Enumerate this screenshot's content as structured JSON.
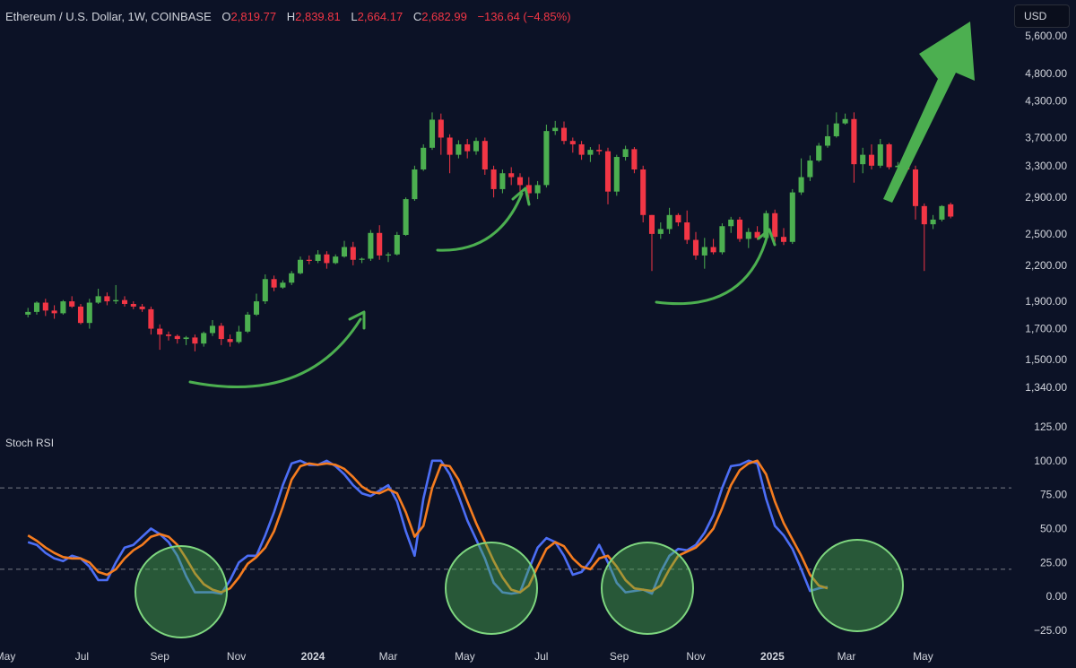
{
  "header": {
    "symbol": "Ethereum / U.S. Dollar, 1W, COINBASE",
    "open_label": "O",
    "open": "2,819.77",
    "high_label": "H",
    "high": "2,839.81",
    "low_label": "L",
    "low": "2,664.17",
    "close_label": "C",
    "close": "2,682.99",
    "change": "−136.64 (−4.85%)"
  },
  "currency_button": "USD",
  "indicator_label": "Stoch RSI",
  "colors": {
    "up": "#4caf50",
    "down": "#f23645",
    "background": "#0c1226",
    "k_line": "#4c6ef5",
    "d_line": "#f57c1f",
    "annotation": "#4caf50"
  },
  "chart_data": [
    {
      "type": "candlestick",
      "title": "Ethereum / U.S. Dollar, 1W, COINBASE",
      "yscale": "log",
      "ylim": [
        1200,
        6200
      ],
      "price_ticks": [
        5600,
        4800,
        4300,
        3700,
        3300,
        2900,
        2500,
        2200,
        1900,
        1700,
        1500,
        1340
      ],
      "price_tick_labels": [
        "5,600.00",
        "4,800.00",
        "4,300.00",
        "3,700.00",
        "3,300.00",
        "2,900.00",
        "2,500.00",
        "2,200.00",
        "1,900.00",
        "1,700.00",
        "1,500.00",
        "1,340.00"
      ],
      "x_start": "2023-05-19",
      "interval_days": 7,
      "x_ticks": [
        {
          "date": "2023-05-01",
          "label": "May",
          "bold": false
        },
        {
          "date": "2023-07-01",
          "label": "Jul",
          "bold": false
        },
        {
          "date": "2023-09-01",
          "label": "Sep",
          "bold": false
        },
        {
          "date": "2023-11-01",
          "label": "Nov",
          "bold": false
        },
        {
          "date": "2024-01-01",
          "label": "2024",
          "bold": true
        },
        {
          "date": "2024-03-01",
          "label": "Mar",
          "bold": false
        },
        {
          "date": "2024-05-01",
          "label": "May",
          "bold": false
        },
        {
          "date": "2024-07-01",
          "label": "Jul",
          "bold": false
        },
        {
          "date": "2024-09-01",
          "label": "Sep",
          "bold": false
        },
        {
          "date": "2024-11-01",
          "label": "Nov",
          "bold": false
        },
        {
          "date": "2025-01-01",
          "label": "2025",
          "bold": true
        },
        {
          "date": "2025-03-01",
          "label": "Mar",
          "bold": false
        },
        {
          "date": "2025-05-01",
          "label": "May",
          "bold": false
        }
      ],
      "ohlc": [
        [
          1800,
          1850,
          1780,
          1820
        ],
        [
          1820,
          1900,
          1800,
          1890
        ],
        [
          1890,
          1920,
          1790,
          1830
        ],
        [
          1830,
          1870,
          1770,
          1810
        ],
        [
          1810,
          1910,
          1800,
          1900
        ],
        [
          1900,
          1940,
          1850,
          1860
        ],
        [
          1860,
          1880,
          1730,
          1740
        ],
        [
          1740,
          1920,
          1700,
          1890
        ],
        [
          1890,
          2000,
          1880,
          1940
        ],
        [
          1940,
          1970,
          1870,
          1900
        ],
        [
          1900,
          2030,
          1880,
          1910
        ],
        [
          1910,
          1940,
          1860,
          1880
        ],
        [
          1880,
          1900,
          1840,
          1860
        ],
        [
          1860,
          1880,
          1820,
          1840
        ],
        [
          1840,
          1860,
          1660,
          1700
        ],
        [
          1700,
          1730,
          1560,
          1660
        ],
        [
          1660,
          1680,
          1620,
          1650
        ],
        [
          1650,
          1660,
          1600,
          1630
        ],
        [
          1630,
          1650,
          1590,
          1640
        ],
        [
          1640,
          1660,
          1550,
          1600
        ],
        [
          1600,
          1680,
          1580,
          1670
        ],
        [
          1670,
          1760,
          1650,
          1720
        ],
        [
          1720,
          1740,
          1590,
          1630
        ],
        [
          1630,
          1660,
          1580,
          1610
        ],
        [
          1610,
          1720,
          1600,
          1680
        ],
        [
          1680,
          1820,
          1670,
          1800
        ],
        [
          1800,
          1960,
          1790,
          1900
        ],
        [
          1900,
          2120,
          1880,
          2080
        ],
        [
          2080,
          2110,
          1980,
          2010
        ],
        [
          2010,
          2070,
          2000,
          2050
        ],
        [
          2050,
          2150,
          2030,
          2130
        ],
        [
          2130,
          2280,
          2120,
          2250
        ],
        [
          2250,
          2290,
          2210,
          2240
        ],
        [
          2240,
          2340,
          2220,
          2300
        ],
        [
          2300,
          2330,
          2170,
          2220
        ],
        [
          2220,
          2300,
          2210,
          2280
        ],
        [
          2280,
          2430,
          2270,
          2370
        ],
        [
          2370,
          2420,
          2200,
          2250
        ],
        [
          2250,
          2270,
          2220,
          2260
        ],
        [
          2260,
          2540,
          2240,
          2510
        ],
        [
          2510,
          2590,
          2250,
          2290
        ],
        [
          2290,
          2320,
          2230,
          2300
        ],
        [
          2300,
          2520,
          2290,
          2490
        ],
        [
          2490,
          2900,
          2480,
          2880
        ],
        [
          2880,
          3300,
          2860,
          3250
        ],
        [
          3250,
          3600,
          3230,
          3550
        ],
        [
          3550,
          4100,
          3520,
          3980
        ],
        [
          3980,
          4080,
          3450,
          3700
        ],
        [
          3700,
          3750,
          3200,
          3450
        ],
        [
          3450,
          3660,
          3400,
          3600
        ],
        [
          3600,
          3680,
          3400,
          3500
        ],
        [
          3500,
          3700,
          3450,
          3650
        ],
        [
          3650,
          3700,
          3180,
          3250
        ],
        [
          3250,
          3300,
          2900,
          3000
        ],
        [
          3000,
          3250,
          2950,
          3200
        ],
        [
          3200,
          3280,
          3050,
          3150
        ],
        [
          3150,
          3200,
          2930,
          3050
        ],
        [
          3050,
          3150,
          2880,
          2950
        ],
        [
          2950,
          3100,
          2880,
          3050
        ],
        [
          3050,
          3900,
          3020,
          3800
        ],
        [
          3800,
          3960,
          3740,
          3850
        ],
        [
          3850,
          3950,
          3600,
          3650
        ],
        [
          3650,
          3700,
          3480,
          3600
        ],
        [
          3600,
          3650,
          3380,
          3450
        ],
        [
          3450,
          3560,
          3350,
          3520
        ],
        [
          3520,
          3600,
          3450,
          3500
        ],
        [
          3500,
          3550,
          2820,
          2970
        ],
        [
          2970,
          3450,
          2920,
          3420
        ],
        [
          3420,
          3580,
          3370,
          3530
        ],
        [
          3530,
          3560,
          3200,
          3250
        ],
        [
          3250,
          3300,
          2620,
          2700
        ],
        [
          2700,
          2700,
          2150,
          2500
        ],
        [
          2500,
          2620,
          2450,
          2550
        ],
        [
          2550,
          2780,
          2500,
          2700
        ],
        [
          2700,
          2720,
          2580,
          2620
        ],
        [
          2620,
          2750,
          2400,
          2440
        ],
        [
          2440,
          2520,
          2250,
          2290
        ],
        [
          2290,
          2460,
          2170,
          2370
        ],
        [
          2370,
          2450,
          2300,
          2320
        ],
        [
          2320,
          2610,
          2300,
          2580
        ],
        [
          2580,
          2680,
          2510,
          2650
        ],
        [
          2650,
          2680,
          2420,
          2450
        ],
        [
          2450,
          2560,
          2360,
          2520
        ],
        [
          2520,
          2580,
          2440,
          2460
        ],
        [
          2460,
          2750,
          2440,
          2720
        ],
        [
          2720,
          2760,
          2420,
          2470
        ],
        [
          2470,
          2560,
          2390,
          2420
        ],
        [
          2420,
          3000,
          2400,
          2960
        ],
        [
          2960,
          3400,
          2930,
          3150
        ],
        [
          3150,
          3440,
          3100,
          3370
        ],
        [
          3370,
          3620,
          3350,
          3580
        ],
        [
          3580,
          3900,
          3550,
          3720
        ],
        [
          3720,
          4100,
          3700,
          3920
        ],
        [
          3920,
          4080,
          3900,
          3990
        ],
        [
          3990,
          4100,
          3080,
          3320
        ],
        [
          3320,
          3550,
          3200,
          3450
        ],
        [
          3450,
          3600,
          3250,
          3300
        ],
        [
          3300,
          3680,
          3270,
          3600
        ],
        [
          3600,
          3620,
          3250,
          3280
        ],
        [
          3280,
          3350,
          3120,
          3300
        ],
        [
          3300,
          3420,
          3250,
          3250
        ],
        [
          3250,
          3300,
          2650,
          2800
        ],
        [
          2800,
          2830,
          2150,
          2600
        ],
        [
          2600,
          2700,
          2550,
          2650
        ],
        [
          2650,
          2810,
          2630,
          2800
        ],
        [
          2819.77,
          2839.81,
          2664.17,
          2682.99
        ]
      ]
    },
    {
      "type": "line",
      "title": "Stoch RSI",
      "ylim": [
        -25,
        125
      ],
      "ticks": [
        125,
        100,
        75,
        50,
        25,
        0,
        -25
      ],
      "tick_labels": [
        "125.00",
        "100.00",
        "75.00",
        "50.00",
        "25.00",
        "0.00",
        "−25.00"
      ],
      "bands": [
        80,
        20
      ],
      "series": [
        {
          "color": "#4c6ef5",
          "values": [
            40,
            38,
            32,
            28,
            26,
            30,
            28,
            22,
            12,
            12,
            25,
            36,
            38,
            44,
            50,
            46,
            40,
            30,
            15,
            3,
            3,
            3,
            2,
            12,
            25,
            30,
            30,
            45,
            62,
            82,
            98,
            100,
            97,
            97,
            100,
            96,
            90,
            82,
            76,
            74,
            78,
            82,
            70,
            48,
            30,
            72,
            100,
            100,
            90,
            74,
            56,
            42,
            28,
            10,
            3,
            2,
            3,
            20,
            36,
            43,
            40,
            30,
            16,
            18,
            26,
            38,
            25,
            10,
            3,
            4,
            5,
            2,
            18,
            30,
            35,
            34,
            38,
            47,
            60,
            80,
            96,
            97,
            100,
            98,
            72,
            52,
            45,
            35,
            20,
            4,
            6,
            7
          ]
        },
        {
          "color": "#f57c1f",
          "values": [
            45,
            41,
            36,
            32,
            29,
            28,
            28,
            25,
            18,
            16,
            20,
            28,
            34,
            38,
            44,
            46,
            44,
            38,
            28,
            17,
            9,
            5,
            3,
            6,
            14,
            24,
            29,
            36,
            48,
            66,
            86,
            96,
            98,
            97,
            98,
            97,
            94,
            88,
            81,
            77,
            76,
            79,
            76,
            62,
            44,
            52,
            80,
            97,
            96,
            86,
            70,
            54,
            40,
            26,
            14,
            5,
            3,
            8,
            22,
            35,
            40,
            37,
            28,
            22,
            20,
            28,
            30,
            22,
            12,
            6,
            5,
            4,
            8,
            20,
            30,
            33,
            36,
            42,
            50,
            65,
            82,
            93,
            98,
            100,
            90,
            70,
            54,
            42,
            30,
            16,
            8,
            6
          ]
        }
      ]
    }
  ]
}
